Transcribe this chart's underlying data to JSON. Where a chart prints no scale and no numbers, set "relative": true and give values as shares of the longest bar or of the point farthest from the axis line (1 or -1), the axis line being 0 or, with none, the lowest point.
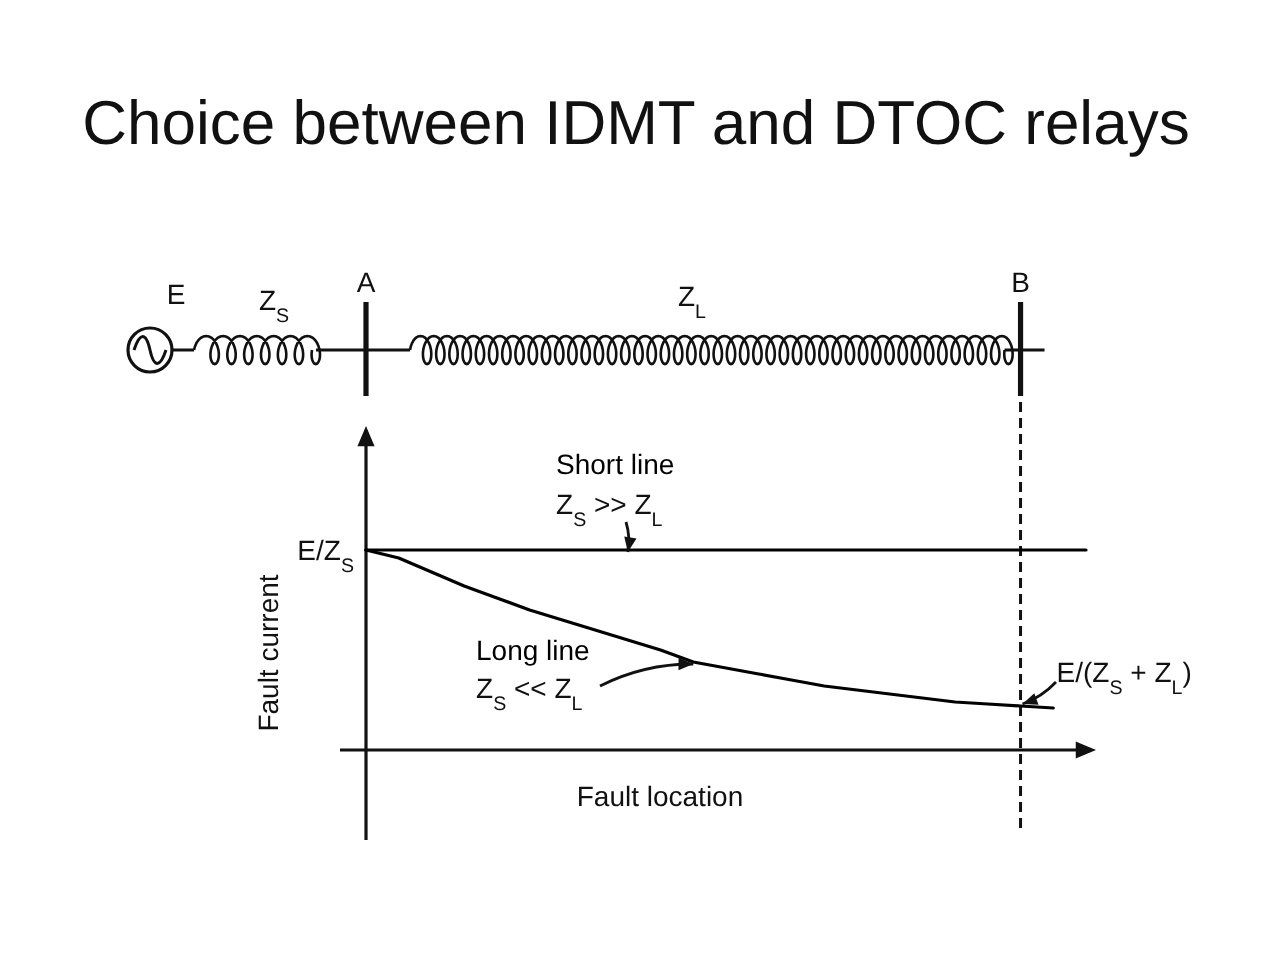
{
  "chart_data": {
    "type": "line",
    "title": "Choice between IDMT and DTOC relays",
    "xlabel": "Fault location",
    "ylabel": "Fault current",
    "relative": true,
    "categories": [
      "A",
      null,
      null,
      null,
      null,
      null,
      null,
      null,
      null,
      null,
      null,
      null,
      null,
      null,
      null,
      null,
      null,
      null,
      null,
      null,
      "B",
      null,
      null
    ],
    "series": [
      {
        "name": "Short line",
        "color": "#000000",
        "values": [
          1,
          1,
          1,
          1,
          1,
          1,
          1,
          1,
          1,
          1,
          1,
          1,
          1,
          1,
          1,
          1,
          1,
          1,
          1,
          1,
          1,
          1,
          1
        ]
      },
      {
        "name": "Long line",
        "color": "#000000",
        "values": [
          1,
          0.96,
          0.89,
          0.82,
          0.76,
          0.7,
          0.65,
          0.6,
          0.55,
          0.5,
          0.44,
          0.41,
          0.38,
          0.35,
          0.32,
          0.3,
          0.28,
          0.26,
          0.24,
          0.23,
          0.22,
          0.21,
          null
        ]
      }
    ],
    "ref_lines": [
      {
        "axis": "x",
        "value": "B",
        "line_style": "dashed"
      }
    ],
    "annotations": [
      "Z$_{S}$ >> Z$_{L}$",
      "Z$_{S}$ << Z$_{L}$",
      {
        "text": "E/(Z$_{S}$ + Z$_{L}$)",
        "x": "B",
        "y": 0.22
      },
      {
        "text": "E/Z$_{S}$",
        "x": "A",
        "y": 1
      },
      "E",
      "Z$_{S}$",
      "Z$_{L}$"
    ]
  }
}
